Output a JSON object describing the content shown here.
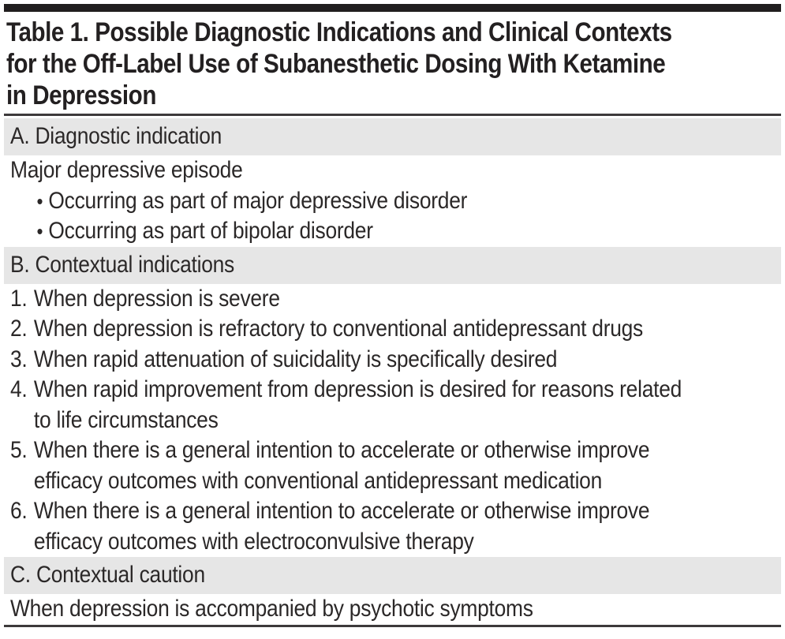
{
  "table": {
    "title_lines": [
      "Table 1. Possible Diagnostic Indications and Clinical Contexts",
      "for the Off-Label Use of Subanesthetic Dosing With Ketamine",
      "in Depression"
    ],
    "glyphs": {
      "bullet": "•"
    },
    "colors": {
      "band_background": "#e6e6e6",
      "rule": "#3d3a3b",
      "top_bar": "#211e1f",
      "text": "#2b2828"
    },
    "sections": [
      {
        "heading": "A. Diagnostic indication",
        "rows": [
          {
            "text": "Major depressive episode"
          },
          {
            "text": "Occurring as part of major depressive disorder"
          },
          {
            "text": "Occurring as part of bipolar disorder"
          }
        ]
      },
      {
        "heading": "B. Contextual indications",
        "rows": [
          {
            "number": "1.",
            "lines": [
              "When depression is severe"
            ]
          },
          {
            "number": "2.",
            "lines": [
              "When depression is refractory to conventional antidepressant drugs"
            ]
          },
          {
            "number": "3.",
            "lines": [
              "When rapid attenuation of suicidality is specifically desired"
            ]
          },
          {
            "number": "4.",
            "lines": [
              "When rapid improvement from depression is desired for reasons related",
              "to life circumstances"
            ]
          },
          {
            "number": "5.",
            "lines": [
              "When there is a general intention to accelerate or otherwise improve",
              "efficacy outcomes with conventional antidepressant medication"
            ]
          },
          {
            "number": "6.",
            "lines": [
              "When there is a general intention to accelerate or otherwise improve",
              "efficacy outcomes with electroconvulsive therapy"
            ]
          }
        ]
      },
      {
        "heading": "C. Contextual caution",
        "rows": [
          {
            "text": "When depression is accompanied by psychotic symptoms"
          }
        ]
      }
    ]
  }
}
